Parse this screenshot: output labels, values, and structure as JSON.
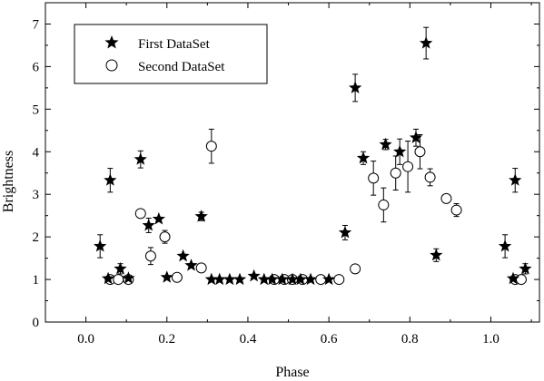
{
  "chart_data": {
    "type": "scatter",
    "title": "",
    "xlabel": "Phase",
    "ylabel": "Brightness",
    "xlim": [
      -0.1,
      1.12
    ],
    "ylim": [
      0,
      7.5
    ],
    "x_ticks": [
      0.0,
      0.2,
      0.4,
      0.6,
      0.8,
      1.0
    ],
    "x_tick_labels": [
      "0.0",
      "0.2",
      "0.4",
      "0.6",
      "0.8",
      "1.0"
    ],
    "y_ticks": [
      0,
      1,
      2,
      3,
      4,
      5,
      6,
      7
    ],
    "y_tick_labels": [
      "0",
      "1",
      "2",
      "3",
      "4",
      "5",
      "6",
      "7"
    ],
    "grid": false,
    "legend_position": "top-left",
    "series": [
      {
        "name": "First DataSet",
        "marker": "filled-star",
        "color": "#000000",
        "points": [
          {
            "x": 0.035,
            "y": 1.78,
            "err": 0.27
          },
          {
            "x": 0.055,
            "y": 1.02,
            "err": 0
          },
          {
            "x": 0.06,
            "y": 3.33,
            "err": 0.28
          },
          {
            "x": 0.085,
            "y": 1.25,
            "err": 0.12
          },
          {
            "x": 0.105,
            "y": 1.03,
            "err": 0
          },
          {
            "x": 0.135,
            "y": 3.82,
            "err": 0.2
          },
          {
            "x": 0.155,
            "y": 2.27,
            "err": 0.17
          },
          {
            "x": 0.18,
            "y": 2.42,
            "err": 0
          },
          {
            "x": 0.2,
            "y": 1.05,
            "err": 0
          },
          {
            "x": 0.24,
            "y": 1.55,
            "err": 0
          },
          {
            "x": 0.26,
            "y": 1.33,
            "err": 0
          },
          {
            "x": 0.285,
            "y": 2.48,
            "err": 0.1
          },
          {
            "x": 0.31,
            "y": 1.0,
            "err": 0
          },
          {
            "x": 0.33,
            "y": 1.0,
            "err": 0
          },
          {
            "x": 0.355,
            "y": 1.0,
            "err": 0
          },
          {
            "x": 0.38,
            "y": 1.0,
            "err": 0
          },
          {
            "x": 0.415,
            "y": 1.08,
            "err": 0
          },
          {
            "x": 0.44,
            "y": 1.0,
            "err": 0
          },
          {
            "x": 0.46,
            "y": 1.0,
            "err": 0
          },
          {
            "x": 0.485,
            "y": 1.0,
            "err": 0
          },
          {
            "x": 0.51,
            "y": 1.0,
            "err": 0
          },
          {
            "x": 0.53,
            "y": 1.0,
            "err": 0
          },
          {
            "x": 0.555,
            "y": 1.0,
            "err": 0
          },
          {
            "x": 0.6,
            "y": 1.0,
            "err": 0
          },
          {
            "x": 0.64,
            "y": 2.1,
            "err": 0.17
          },
          {
            "x": 0.665,
            "y": 5.5,
            "err": 0.32
          },
          {
            "x": 0.685,
            "y": 3.85,
            "err": 0.15
          },
          {
            "x": 0.74,
            "y": 4.17,
            "err": 0.12
          },
          {
            "x": 0.775,
            "y": 4.0,
            "err": 0.3
          },
          {
            "x": 0.815,
            "y": 4.33,
            "err": 0.2
          },
          {
            "x": 0.84,
            "y": 6.55,
            "err": 0.37
          },
          {
            "x": 0.865,
            "y": 1.57,
            "err": 0.15
          },
          {
            "x": 1.035,
            "y": 1.78,
            "err": 0.27
          },
          {
            "x": 1.055,
            "y": 1.02,
            "err": 0
          },
          {
            "x": 1.06,
            "y": 3.33,
            "err": 0.28
          },
          {
            "x": 1.085,
            "y": 1.25,
            "err": 0.12
          }
        ]
      },
      {
        "name": "Second DataSet",
        "marker": "open-circle",
        "color": "#000000",
        "points": [
          {
            "x": 0.06,
            "y": 1.0,
            "err": 0
          },
          {
            "x": 0.08,
            "y": 1.0,
            "err": 0
          },
          {
            "x": 0.105,
            "y": 1.0,
            "err": 0
          },
          {
            "x": 0.135,
            "y": 2.55,
            "err": 0.1
          },
          {
            "x": 0.16,
            "y": 1.55,
            "err": 0.2
          },
          {
            "x": 0.195,
            "y": 2.0,
            "err": 0.15
          },
          {
            "x": 0.225,
            "y": 1.05,
            "err": 0
          },
          {
            "x": 0.285,
            "y": 1.27,
            "err": 0
          },
          {
            "x": 0.31,
            "y": 4.13,
            "err": 0.4
          },
          {
            "x": 0.465,
            "y": 1.0,
            "err": 0
          },
          {
            "x": 0.49,
            "y": 1.0,
            "err": 0
          },
          {
            "x": 0.51,
            "y": 1.0,
            "err": 0
          },
          {
            "x": 0.535,
            "y": 1.0,
            "err": 0
          },
          {
            "x": 0.58,
            "y": 1.0,
            "err": 0
          },
          {
            "x": 0.625,
            "y": 1.0,
            "err": 0
          },
          {
            "x": 0.665,
            "y": 1.25,
            "err": 0.05
          },
          {
            "x": 0.71,
            "y": 3.38,
            "err": 0.4
          },
          {
            "x": 0.735,
            "y": 2.75,
            "err": 0.4
          },
          {
            "x": 0.765,
            "y": 3.5,
            "err": 0.4
          },
          {
            "x": 0.795,
            "y": 3.65,
            "err": 0.6
          },
          {
            "x": 0.825,
            "y": 4.0,
            "err": 0.4
          },
          {
            "x": 0.85,
            "y": 3.4,
            "err": 0.2
          },
          {
            "x": 0.89,
            "y": 2.9,
            "err": 0
          },
          {
            "x": 0.915,
            "y": 2.63,
            "err": 0.15
          },
          {
            "x": 1.06,
            "y": 1.0,
            "err": 0
          },
          {
            "x": 1.075,
            "y": 1.0,
            "err": 0
          }
        ]
      }
    ]
  }
}
